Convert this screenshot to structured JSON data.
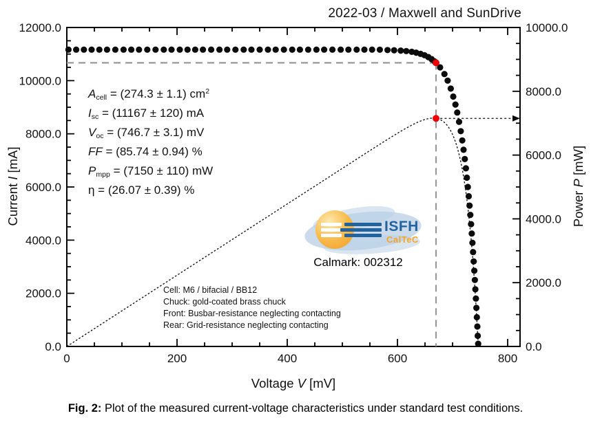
{
  "header": {
    "title": "2022-03 / Maxwell and SunDrive"
  },
  "chart_data": {
    "type": "scatter",
    "title": "2022-03 / Maxwell and SunDrive",
    "xlabel": {
      "pre": "Voltage ",
      "var": "V",
      "post": " [mV]"
    },
    "ylabel_left": {
      "pre": "Current ",
      "var": "I",
      "post": " [mA]"
    },
    "ylabel_right": {
      "pre": "Power ",
      "var": "P",
      "post": " [mW]"
    },
    "x_axis": {
      "min": 0,
      "max": 822.5,
      "major_ticks": [
        0,
        200,
        400,
        600,
        800
      ],
      "major_labels": [
        "0",
        "200",
        "400",
        "600",
        "800"
      ],
      "minor_step": 50
    },
    "y_left": {
      "min": 0,
      "max": 12000,
      "major_ticks": [
        0,
        2000,
        4000,
        6000,
        8000,
        10000,
        12000
      ],
      "major_labels": [
        "0.0",
        "2000.0",
        "4000.0",
        "6000.0",
        "8000.0",
        "10000.0",
        "12000.0"
      ],
      "minor_step": 500
    },
    "y_right": {
      "min": 0,
      "max": 10000,
      "major_ticks": [
        0,
        2000,
        4000,
        6000,
        8000,
        10000
      ],
      "major_labels": [
        "0.0",
        "2000.0",
        "4000.0",
        "6000.0",
        "8000.0",
        "10000.0"
      ],
      "minor_step": 500
    },
    "grid": false,
    "legend": "none",
    "iv_points": [
      [
        3,
        11167
      ],
      [
        17,
        11167
      ],
      [
        31,
        11167
      ],
      [
        45,
        11167
      ],
      [
        59,
        11167
      ],
      [
        73,
        11167
      ],
      [
        88,
        11167
      ],
      [
        103,
        11167
      ],
      [
        117,
        11167
      ],
      [
        131,
        11167
      ],
      [
        146,
        11167
      ],
      [
        161,
        11167
      ],
      [
        176,
        11167
      ],
      [
        190,
        11167
      ],
      [
        205,
        11167
      ],
      [
        219,
        11167
      ],
      [
        233,
        11167
      ],
      [
        247,
        11167
      ],
      [
        262,
        11167
      ],
      [
        277,
        11167
      ],
      [
        291,
        11167
      ],
      [
        306,
        11167
      ],
      [
        321,
        11167
      ],
      [
        335,
        11167
      ],
      [
        350,
        11167
      ],
      [
        365,
        11167
      ],
      [
        379,
        11167
      ],
      [
        394,
        11167
      ],
      [
        409,
        11167
      ],
      [
        423,
        11167
      ],
      [
        438,
        11167
      ],
      [
        453,
        11167
      ],
      [
        467,
        11167
      ],
      [
        482,
        11167
      ],
      [
        497,
        11167
      ],
      [
        511,
        11167
      ],
      [
        526,
        11167
      ],
      [
        540,
        11167
      ],
      [
        554,
        11166
      ],
      [
        568,
        11165
      ],
      [
        582,
        11153
      ],
      [
        594,
        11144
      ],
      [
        606,
        11130
      ],
      [
        616,
        11112
      ],
      [
        626,
        11084
      ],
      [
        634,
        11053
      ],
      [
        642,
        11008
      ],
      [
        649,
        10957
      ],
      [
        656,
        10888
      ],
      [
        662,
        10810
      ],
      [
        667,
        10730
      ],
      [
        677.4,
        10500
      ],
      [
        685.2,
        10250
      ],
      [
        691.1,
        10000
      ],
      [
        696.8,
        9700
      ],
      [
        701.3,
        9400
      ],
      [
        705.2,
        9100
      ],
      [
        708.5,
        8800
      ],
      [
        711.9,
        8450
      ],
      [
        714.9,
        8100
      ],
      [
        717.6,
        7750
      ],
      [
        720.0,
        7400
      ],
      [
        722.2,
        7050
      ],
      [
        724.2,
        6700
      ],
      [
        726.0,
        6350
      ],
      [
        727.7,
        6000
      ],
      [
        729.4,
        5650
      ],
      [
        730.9,
        5300
      ],
      [
        732.3,
        4950
      ],
      [
        733.6,
        4600
      ],
      [
        734.9,
        4250
      ],
      [
        736.1,
        3900
      ],
      [
        737.3,
        3550
      ],
      [
        738.4,
        3200
      ],
      [
        739.5,
        2850
      ],
      [
        740.5,
        2500
      ],
      [
        741.4,
        2150
      ],
      [
        742.4,
        1800
      ],
      [
        743.3,
        1450
      ],
      [
        744.1,
        1100
      ],
      [
        745.0,
        750
      ],
      [
        745.8,
        400
      ],
      [
        746.5,
        100
      ]
    ],
    "power_model": {
      "isc_mA": 11167,
      "voc_mV": 746.7,
      "diode_a_mV": 24.6
    },
    "mpp": {
      "v_mV": 670,
      "i_mA": 10671,
      "p_mW": 7150
    },
    "colors": {
      "points": "#0c0c0c",
      "marker": "#ee0000",
      "guide": "#989898",
      "axis": "#000000"
    }
  },
  "annotations": {
    "results": [
      {
        "v": "A",
        "sub": "cell",
        "rest": " = (274.3 ± 1.1) cm",
        "sup": "2"
      },
      {
        "v": "I",
        "sub": "sc",
        "rest": " = (11167 ± 120) mA",
        "sup": ""
      },
      {
        "v": "V",
        "sub": "oc",
        "rest": " = (746.7 ± 3.1) mV",
        "sup": ""
      },
      {
        "v": "FF",
        "sub": "",
        "rest": " = (85.74 ± 0.94) %",
        "sup": ""
      },
      {
        "v": "P",
        "sub": "mpp",
        "rest": " = (7150 ± 110) mW",
        "sup": ""
      },
      {
        "v": "",
        "sub": "",
        "rest": "η = (26.07 ± 0.39) %",
        "sup": ""
      }
    ]
  },
  "logo": {
    "org": "ISFH",
    "division": "CalTeC",
    "calmark_label": "Calmark: 002312"
  },
  "conditions": [
    "Cell: M6 / bifacial / BB12",
    "Chuck: gold-coated brass chuck",
    "Front: Busbar-resistance neglecting contacting",
    "Rear: Grid-resistance neglecting contacting"
  ],
  "caption": {
    "label": "Fig. 2:",
    "text": " Plot of the measured current-voltage characteristics under standard test conditions."
  }
}
